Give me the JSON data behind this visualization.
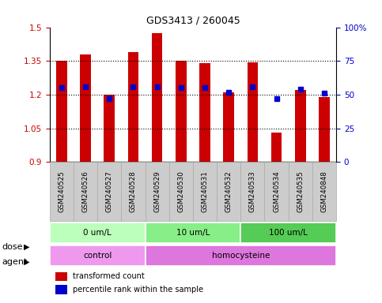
{
  "title": "GDS3413 / 260045",
  "samples": [
    "GSM240525",
    "GSM240526",
    "GSM240527",
    "GSM240528",
    "GSM240529",
    "GSM240530",
    "GSM240531",
    "GSM240532",
    "GSM240533",
    "GSM240534",
    "GSM240535",
    "GSM240848"
  ],
  "bar_values": [
    1.35,
    1.38,
    1.2,
    1.39,
    1.475,
    1.35,
    1.34,
    1.21,
    1.345,
    1.03,
    1.22,
    1.19
  ],
  "percentile_values": [
    55,
    56,
    47,
    56,
    56,
    55,
    55,
    52,
    56,
    47,
    54,
    51
  ],
  "bar_color": "#cc0000",
  "percentile_color": "#0000cc",
  "ylim_left": [
    0.9,
    1.5
  ],
  "ylim_right": [
    0,
    100
  ],
  "yticks_left": [
    0.9,
    1.05,
    1.2,
    1.35,
    1.5
  ],
  "yticks_right": [
    0,
    25,
    50,
    75,
    100
  ],
  "ytick_labels_left": [
    "0.9",
    "1.05",
    "1.2",
    "1.35",
    "1.5"
  ],
  "ytick_labels_right": [
    "0",
    "25",
    "50",
    "75",
    "100%"
  ],
  "hlines": [
    1.05,
    1.2,
    1.35
  ],
  "dose_groups": [
    {
      "label": "0 um/L",
      "start": 0,
      "end": 4,
      "color": "#bbffbb"
    },
    {
      "label": "10 um/L",
      "start": 4,
      "end": 8,
      "color": "#88ee88"
    },
    {
      "label": "100 um/L",
      "start": 8,
      "end": 12,
      "color": "#55cc55"
    }
  ],
  "agent_groups": [
    {
      "label": "control",
      "start": 0,
      "end": 4,
      "color": "#ee99ee"
    },
    {
      "label": "homocysteine",
      "start": 4,
      "end": 12,
      "color": "#dd77dd"
    }
  ],
  "legend_items": [
    {
      "label": "transformed count",
      "color": "#cc0000"
    },
    {
      "label": "percentile rank within the sample",
      "color": "#0000cc"
    }
  ],
  "bar_width": 0.45,
  "percentile_marker_size": 5,
  "tick_label_color_left": "#cc0000",
  "tick_label_color_right": "#0000cc",
  "sample_bg_color": "#cccccc",
  "sample_border_color": "#aaaaaa"
}
